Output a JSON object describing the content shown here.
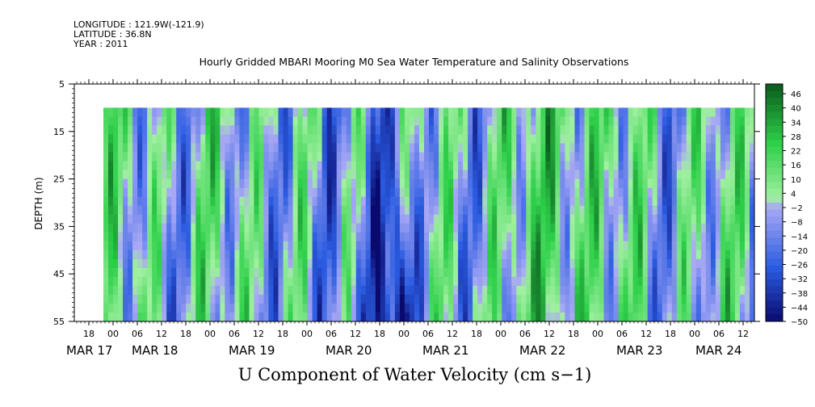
{
  "header": {
    "longitude": "LONGITUDE : 121.9W(-121.9)",
    "latitude": "LATITUDE : 36.8N",
    "year": "YEAR : 2011"
  },
  "colors": {
    "min": "#0a0a6e",
    "neg": "#2a5be0",
    "negLight": "#a9a9f5",
    "posLight": "#a0f0a0",
    "pos": "#2ed04a",
    "max": "#0a5a1c"
  },
  "chart_data": {
    "type": "heatmap",
    "title": "Hourly Gridded MBARI Mooring M0 Sea Water Temperature and Salinity Observations",
    "variable_label": "U Component of Water Velocity (cm s−1)",
    "ylabel": "DEPTH (m)",
    "ylim": [
      5,
      55
    ],
    "y_reversed": true,
    "y_ticks": [
      5,
      15,
      25,
      35,
      45,
      55
    ],
    "data_depth_range": [
      10,
      55
    ],
    "x_tick_hour_labels": [
      "18",
      "00",
      "06",
      "12",
      "18",
      "00",
      "06",
      "12",
      "18",
      "00",
      "06",
      "12",
      "18",
      "00",
      "06",
      "12",
      "18",
      "00",
      "06",
      "12",
      "18",
      "00",
      "06",
      "12",
      "18",
      "00",
      "06",
      "12",
      "18",
      "00",
      "06",
      "12"
    ],
    "x_date_labels": [
      "MAR 17",
      "MAR 18",
      "MAR 19",
      "MAR 20",
      "MAR 21",
      "MAR 22",
      "MAR 23",
      "MAR 24"
    ],
    "colorbar": {
      "min": -50,
      "max": 50,
      "tick_labels": [
        "46",
        "40",
        "34",
        "28",
        "22",
        "16",
        "10",
        "4",
        "−2",
        "−8",
        "−14",
        "−20",
        "−26",
        "−32",
        "−38",
        "−44",
        "−50"
      ]
    }
  }
}
